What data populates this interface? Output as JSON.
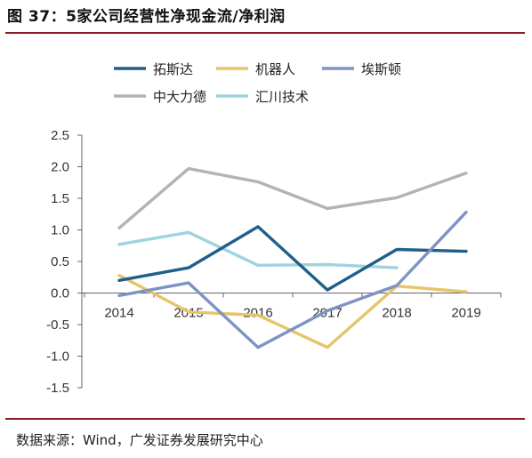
{
  "header": {
    "title": "图 37：5家公司经营性净现金流/净利润"
  },
  "footer": {
    "source": "数据来源：Wind，广发证券发展研究中心"
  },
  "colors": {
    "accent_rule": "#8c1c24"
  },
  "chart_data": {
    "type": "line",
    "title": "",
    "xlabel": "",
    "ylabel": "",
    "categories": [
      "2014",
      "2015",
      "2016",
      "2017",
      "2018",
      "2019"
    ],
    "ylim": [
      -1.5,
      2.5
    ],
    "yticks": [
      "2.5",
      "2.0",
      "1.5",
      "1.0",
      "0.5",
      "0.0",
      "-0.5",
      "-1.0",
      "-1.5"
    ],
    "grid": false,
    "legend_position": "top",
    "series": [
      {
        "name": "拓斯达",
        "color": "#1f5f8b",
        "values": [
          0.2,
          0.4,
          1.05,
          0.05,
          0.69,
          0.66
        ]
      },
      {
        "name": "机器人",
        "color": "#e5c46a",
        "values": [
          0.28,
          -0.3,
          -0.35,
          -0.86,
          0.11,
          0.02
        ]
      },
      {
        "name": "埃斯顿",
        "color": "#7f92c5",
        "values": [
          -0.04,
          0.16,
          -0.86,
          -0.28,
          0.12,
          1.28
        ]
      },
      {
        "name": "中大力德",
        "color": "#b3b3b3",
        "values": [
          1.03,
          1.97,
          1.76,
          1.34,
          1.51,
          1.9
        ]
      },
      {
        "name": "汇川技术",
        "color": "#9ed3df",
        "values": [
          0.77,
          0.96,
          0.44,
          0.45,
          0.4,
          null
        ]
      }
    ]
  }
}
